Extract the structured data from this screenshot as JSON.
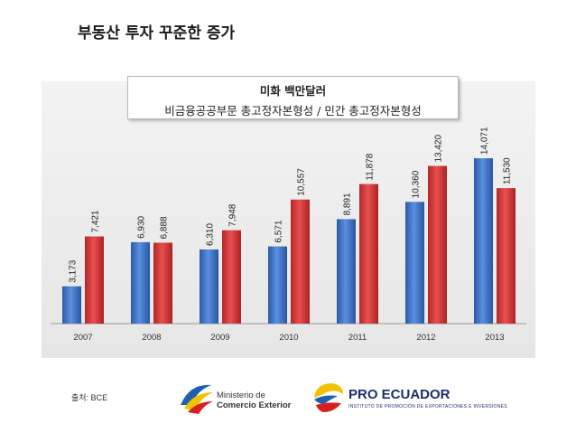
{
  "title": "부동산 투자 꾸준한 증가",
  "chart_data": {
    "type": "bar",
    "title": "미화 백만달러",
    "categories": [
      "2007",
      "2008",
      "2009",
      "2010",
      "2011",
      "2012",
      "2013"
    ],
    "series": [
      {
        "name": "비금융공공부문 총고정자본형성",
        "color": "#3f73c8",
        "values": [
          3173,
          6930,
          6310,
          6571,
          8891,
          10360,
          14071
        ]
      },
      {
        "name": "민간 총고정자본형성",
        "color": "#d63a3a",
        "values": [
          7421,
          6888,
          7948,
          10557,
          11878,
          13420,
          11530
        ]
      }
    ],
    "value_labels": {
      "public": [
        "3,173",
        "6,930",
        "6,310",
        "6,571",
        "8,891",
        "10,360",
        "14,071"
      ],
      "private": [
        "7,421",
        "6,888",
        "7,948",
        "10,557",
        "11,878",
        "13,420",
        "11,530"
      ]
    },
    "legend_text": "비금융공공부문 총고정자본형성 / 민간 총고정자본형성",
    "ylim": [
      0,
      16000
    ],
    "grid": false
  },
  "source": "출처: BCE",
  "logos": {
    "ministerio_line1": "Ministerio de",
    "ministerio_line2": "Comercio Exterior",
    "pro_name": "PRO ECUADOR",
    "pro_tagline": "INSTITUTO DE PROMOCIÓN DE EXPORTACIONES E INVERSIONES"
  }
}
